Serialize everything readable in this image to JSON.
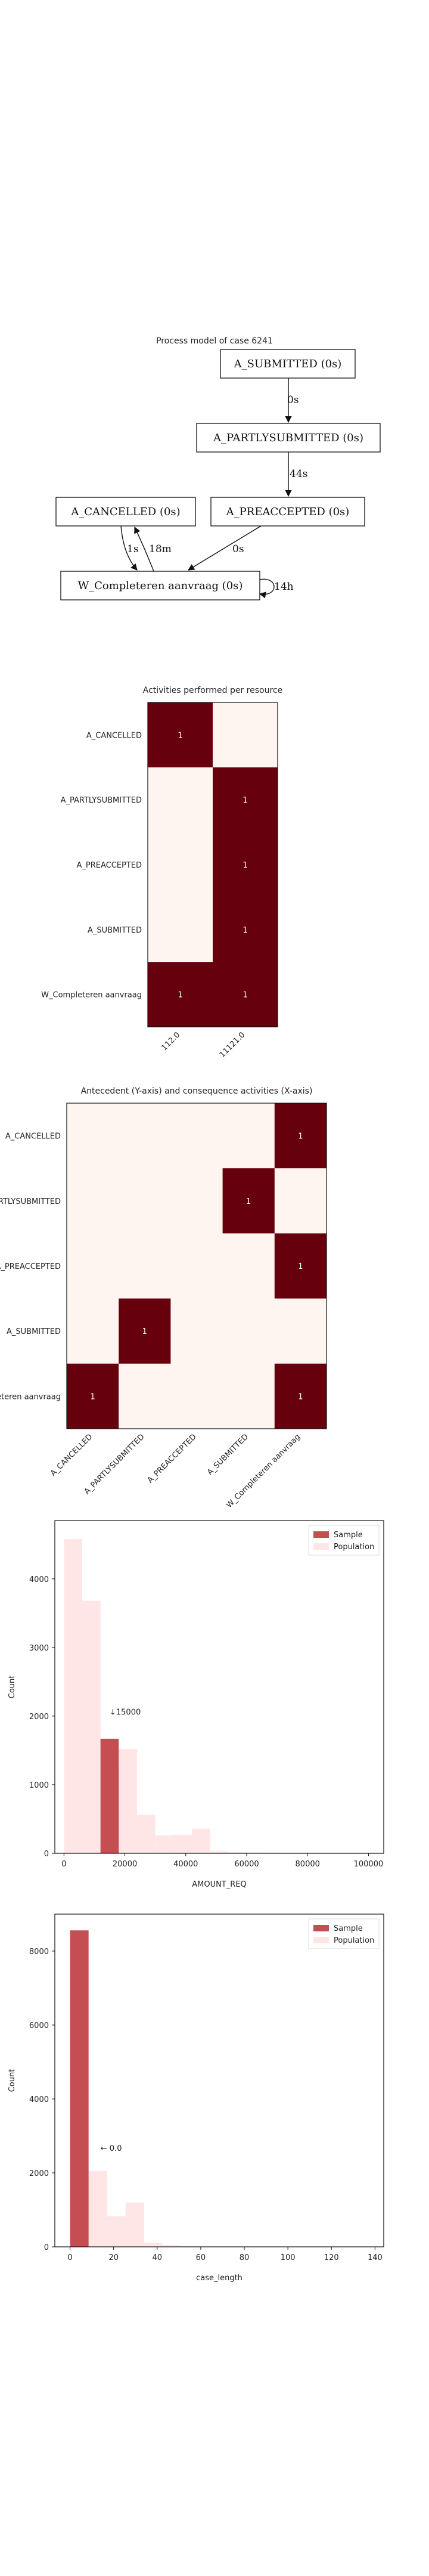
{
  "process_model": {
    "title": "Process model of case 6241",
    "nodes": [
      {
        "id": "A_SUBMITTED",
        "label": "A_SUBMITTED (0s)"
      },
      {
        "id": "A_PARTLYSUBMITTED",
        "label": "A_PARTLYSUBMITTED (0s)"
      },
      {
        "id": "A_CANCELLED",
        "label": "A_CANCELLED (0s)"
      },
      {
        "id": "A_PREACCEPTED",
        "label": "A_PREACCEPTED (0s)"
      },
      {
        "id": "W_Completeren",
        "label": "W_Completeren aanvraag (0s)"
      }
    ],
    "edges": [
      {
        "from": "A_SUBMITTED",
        "to": "A_PARTLYSUBMITTED",
        "label": "0s"
      },
      {
        "from": "A_PARTLYSUBMITTED",
        "to": "A_PREACCEPTED",
        "label": "44s"
      },
      {
        "from": "A_CANCELLED",
        "to": "W_Completeren",
        "label": "1s"
      },
      {
        "from": "W_Completeren",
        "to": "A_CANCELLED",
        "label": "18m"
      },
      {
        "from": "A_PREACCEPTED",
        "to": "W_Completeren",
        "label": "0s"
      },
      {
        "from": "W_Completeren",
        "to": "W_Completeren",
        "label": "14h"
      }
    ]
  },
  "chart_data": [
    {
      "type": "heatmap",
      "title": "Activities performed per resource",
      "rows": [
        "A_CANCELLED",
        "A_PARTLYSUBMITTED",
        "A_PREACCEPTED",
        "A_SUBMITTED",
        "W_Completeren aanvraag"
      ],
      "cols": [
        "112.0",
        "11121.0"
      ],
      "values": [
        [
          1,
          0
        ],
        [
          0,
          1
        ],
        [
          0,
          1
        ],
        [
          0,
          1
        ],
        [
          1,
          1
        ]
      ],
      "cell_labels": [
        [
          "1",
          ""
        ],
        [
          "",
          "1"
        ],
        [
          "",
          "1"
        ],
        [
          "",
          "1"
        ],
        [
          "1",
          "1"
        ]
      ],
      "colors": {
        "high": "#67000d",
        "low": "#fff5f0"
      }
    },
    {
      "type": "heatmap",
      "title": "Antecedent (Y-axis) and consequence activities (X-axis)",
      "rows": [
        "A_CANCELLED",
        "A_PARTLYSUBMITTED",
        "A_PREACCEPTED",
        "A_SUBMITTED",
        "W_Completeren aanvraag"
      ],
      "cols": [
        "A_CANCELLED",
        "A_PARTLYSUBMITTED",
        "A_PREACCEPTED",
        "A_SUBMITTED",
        "W_Completeren aanvraag"
      ],
      "values": [
        [
          0,
          0,
          0,
          0,
          1
        ],
        [
          0,
          0,
          0,
          1,
          0
        ],
        [
          0,
          0,
          0,
          0,
          1
        ],
        [
          0,
          1,
          0,
          0,
          0
        ],
        [
          1,
          0,
          0,
          0,
          1
        ]
      ],
      "cell_labels": [
        [
          "",
          "",
          "",
          "",
          "1"
        ],
        [
          "",
          "",
          "",
          "1",
          ""
        ],
        [
          "",
          "",
          "",
          "",
          "1"
        ],
        [
          "",
          "1",
          "",
          "",
          ""
        ],
        [
          "1",
          "",
          "",
          "",
          "1"
        ]
      ],
      "colors": {
        "high": "#67000d",
        "low": "#fff5f0"
      }
    },
    {
      "type": "bar",
      "title": "",
      "xlabel": "AMOUNT_REQ",
      "ylabel": "Count",
      "xlim": [
        -3000,
        105000
      ],
      "ylim": [
        0,
        4850
      ],
      "xticks": [
        0,
        20000,
        40000,
        60000,
        80000,
        100000
      ],
      "xtick_labels": [
        "0",
        "20000",
        "40000",
        "60000",
        "80000",
        "100000"
      ],
      "yticks": [
        0,
        1000,
        2000,
        3000,
        4000
      ],
      "ytick_labels": [
        "0",
        "1000",
        "2000",
        "3000",
        "4000"
      ],
      "bin_width": 6000,
      "series": [
        {
          "name": "Population",
          "color": "#ffe6e6",
          "bins": [
            {
              "x0": 0,
              "v": 4580
            },
            {
              "x0": 6000,
              "v": 3680
            },
            {
              "x0": 12000,
              "v": 1260
            },
            {
              "x0": 18000,
              "v": 1520
            },
            {
              "x0": 24000,
              "v": 560
            },
            {
              "x0": 30000,
              "v": 260
            },
            {
              "x0": 36000,
              "v": 270
            },
            {
              "x0": 42000,
              "v": 360
            },
            {
              "x0": 48000,
              "v": 30
            },
            {
              "x0": 54000,
              "v": 15
            },
            {
              "x0": 60000,
              "v": 10
            },
            {
              "x0": 66000,
              "v": 5
            }
          ]
        },
        {
          "name": "Sample",
          "color": "#c44e52",
          "bins": [
            {
              "x0": 12000,
              "v": 1670
            }
          ]
        }
      ],
      "annotation": {
        "text": "↓15000",
        "x": 15000,
        "y": 2020
      },
      "legend": [
        "Sample",
        "Population"
      ],
      "legend_position": "top-right"
    },
    {
      "type": "bar",
      "title": "",
      "xlabel": "case_length",
      "ylabel": "Count",
      "xlim": [
        -7,
        144
      ],
      "ylim": [
        0,
        9000
      ],
      "xticks": [
        0,
        20,
        40,
        60,
        80,
        100,
        120,
        140
      ],
      "xtick_labels": [
        "0",
        "20",
        "40",
        "60",
        "80",
        "100",
        "120",
        "140"
      ],
      "yticks": [
        0,
        2000,
        4000,
        6000,
        8000
      ],
      "ytick_labels": [
        "0",
        "2000",
        "4000",
        "6000",
        "8000"
      ],
      "bin_width": 8.5,
      "series": [
        {
          "name": "Population",
          "color": "#ffe6e6",
          "bins": [
            {
              "x0": 0,
              "v": 8560
            },
            {
              "x0": 8.5,
              "v": 2050
            },
            {
              "x0": 17,
              "v": 830
            },
            {
              "x0": 25.5,
              "v": 1200
            },
            {
              "x0": 34,
              "v": 110
            },
            {
              "x0": 42.5,
              "v": 45
            },
            {
              "x0": 51,
              "v": 20
            },
            {
              "x0": 59.5,
              "v": 10
            }
          ]
        },
        {
          "name": "Sample",
          "color": "#c44e52",
          "bins": [
            {
              "x0": 0,
              "v": 8560
            }
          ]
        }
      ],
      "annotation": {
        "text": "← 0.0",
        "x": 14,
        "y": 2600
      },
      "legend": [
        "Sample",
        "Population"
      ],
      "legend_position": "top-right"
    }
  ]
}
